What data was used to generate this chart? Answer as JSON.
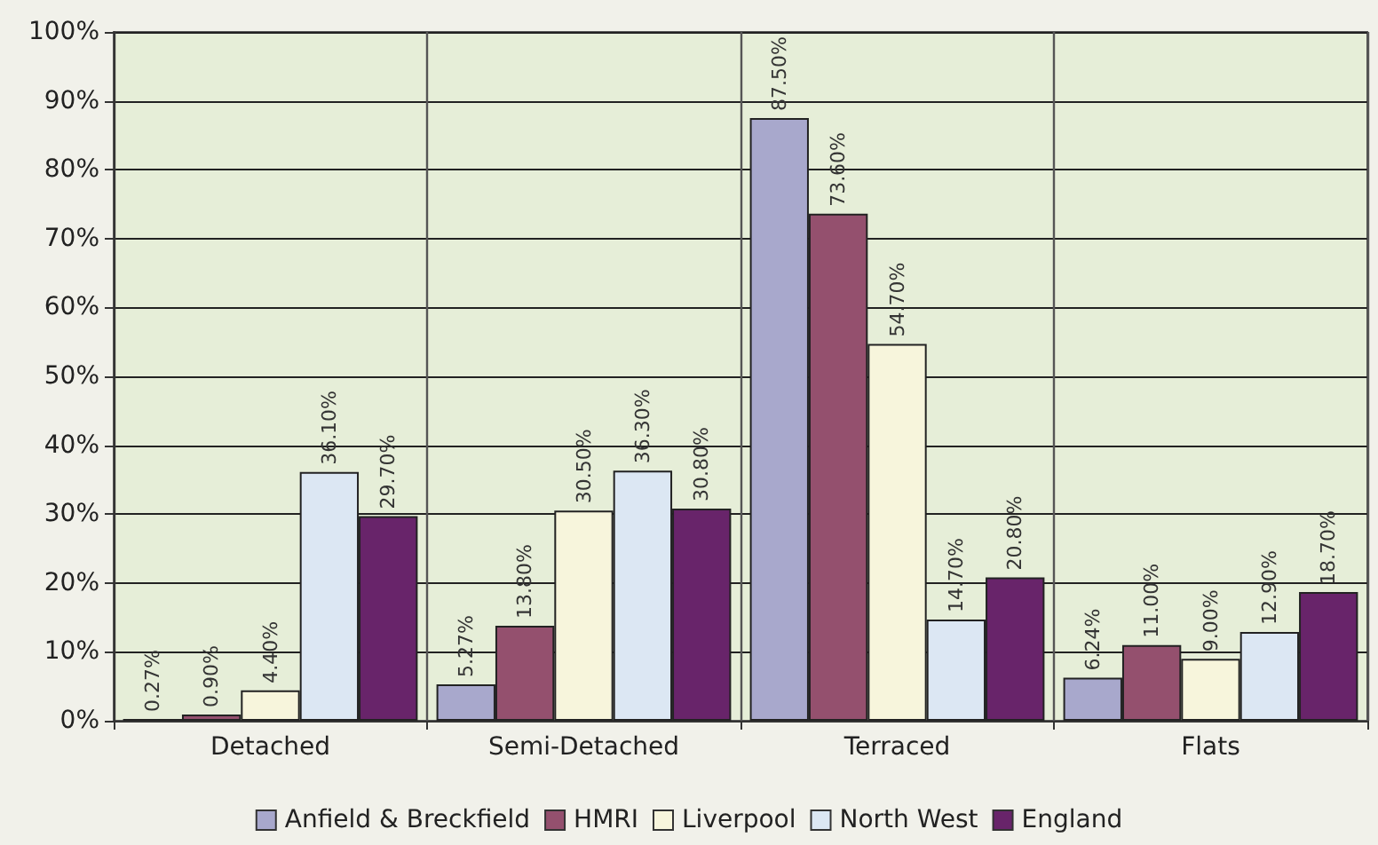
{
  "chart_data": {
    "type": "bar",
    "categories": [
      "Detached",
      "Semi-Detached",
      "Terraced",
      "Flats"
    ],
    "series": [
      {
        "name": "Anfield & Breckfield",
        "color": "#a8a8cc",
        "values": [
          0.27,
          5.27,
          87.5,
          6.24
        ],
        "value_labels": [
          "0.27%",
          "5.27%",
          "87.50%",
          "6.24%"
        ]
      },
      {
        "name": "HMRI",
        "color": "#94506e",
        "values": [
          0.9,
          13.8,
          73.6,
          11.0
        ],
        "value_labels": [
          "0.90%",
          "13.80%",
          "73.60%",
          "11.00%"
        ]
      },
      {
        "name": "Liverpool",
        "color": "#f7f5dc",
        "values": [
          4.4,
          30.5,
          54.7,
          9.0
        ],
        "value_labels": [
          "4.40%",
          "30.50%",
          "54.70%",
          "9.00%"
        ]
      },
      {
        "name": "North West",
        "color": "#dce7f3",
        "values": [
          36.1,
          36.3,
          14.7,
          12.9
        ],
        "value_labels": [
          "36.10%",
          "36.30%",
          "14.70%",
          "12.90%"
        ]
      },
      {
        "name": "England",
        "color": "#68246a",
        "values": [
          29.7,
          30.8,
          20.8,
          18.7
        ],
        "value_labels": [
          "29.70%",
          "30.80%",
          "20.80%",
          "18.70%"
        ]
      }
    ],
    "ylim": [
      0,
      100
    ],
    "yticks": [
      {
        "value": 0,
        "label": "0%"
      },
      {
        "value": 10,
        "label": "10%"
      },
      {
        "value": 20,
        "label": "20%"
      },
      {
        "value": 30,
        "label": "30%"
      },
      {
        "value": 40,
        "label": "40%"
      },
      {
        "value": 50,
        "label": "50%"
      },
      {
        "value": 60,
        "label": "60%"
      },
      {
        "value": 70,
        "label": "70%"
      },
      {
        "value": 80,
        "label": "80%"
      },
      {
        "value": 90,
        "label": "90%"
      },
      {
        "value": 100,
        "label": "100%"
      }
    ],
    "grid": true,
    "legend": "bottom"
  }
}
